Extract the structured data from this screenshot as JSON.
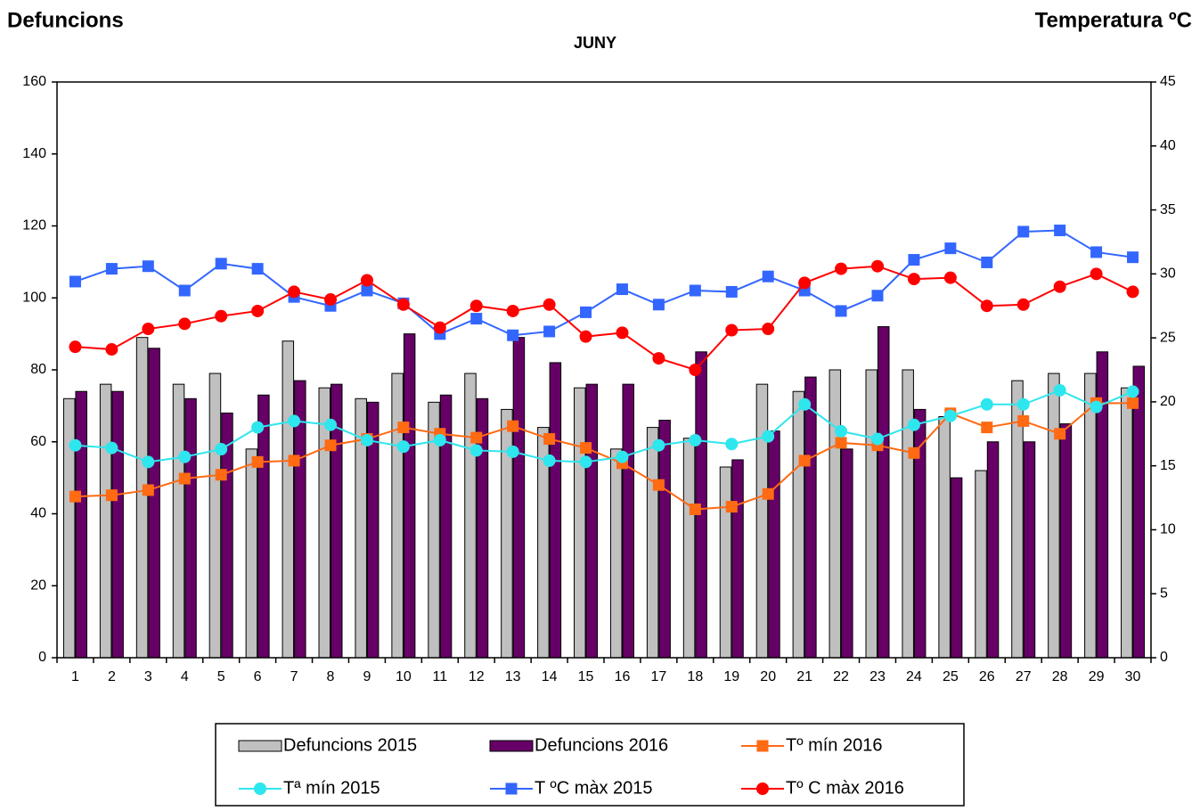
{
  "chart_data": {
    "type": "combo",
    "title": "JUNY",
    "y_label": "Defuncions",
    "y2_label": "Temperatura ºC",
    "categories": [
      "1",
      "2",
      "3",
      "4",
      "5",
      "6",
      "7",
      "8",
      "9",
      "10",
      "11",
      "12",
      "13",
      "14",
      "15",
      "16",
      "17",
      "18",
      "19",
      "20",
      "21",
      "22",
      "23",
      "24",
      "25",
      "26",
      "27",
      "28",
      "29",
      "30"
    ],
    "ylim": [
      0,
      160
    ],
    "yticks": [
      0,
      20,
      40,
      60,
      80,
      100,
      120,
      140,
      160
    ],
    "y2lim": [
      0,
      45
    ],
    "y2ticks": [
      0,
      5,
      10,
      15,
      20,
      25,
      30,
      35,
      40,
      45
    ],
    "series": [
      {
        "name": "Defuncions 2015",
        "type": "bar",
        "color": "#c0c0c0",
        "values": [
          72,
          76,
          89,
          76,
          79,
          58,
          88,
          75,
          72,
          79,
          71,
          79,
          69,
          64,
          75,
          58,
          64,
          61,
          53,
          76,
          74,
          80,
          80,
          80,
          67,
          52,
          77,
          79,
          79,
          75
        ]
      },
      {
        "name": "Defuncions 2016",
        "type": "bar",
        "color": "#660066",
        "values": [
          74,
          74,
          86,
          72,
          68,
          73,
          77,
          76,
          71,
          90,
          73,
          72,
          89,
          82,
          76,
          76,
          66,
          85,
          55,
          63,
          78,
          58,
          92,
          69,
          50,
          60,
          60,
          65,
          85,
          81
        ]
      },
      {
        "name": "Tº mín 2016",
        "type": "line",
        "axis": "y2",
        "marker": "square",
        "color": "#ff6a13",
        "values": [
          12.6,
          12.7,
          13.1,
          14.0,
          14.3,
          15.3,
          15.4,
          16.6,
          17.1,
          18.0,
          17.5,
          17.2,
          18.1,
          17.1,
          16.4,
          15.2,
          13.5,
          11.6,
          11.8,
          12.8,
          15.4,
          16.8,
          16.6,
          16.0,
          19.1,
          18.0,
          18.5,
          17.5,
          19.9,
          19.9
        ]
      },
      {
        "name": "Tª mín 2015",
        "type": "line",
        "axis": "y2",
        "marker": "circle",
        "color": "#2ee6ee",
        "values": [
          16.6,
          16.4,
          15.3,
          15.7,
          16.3,
          18.0,
          18.5,
          18.2,
          17.0,
          16.5,
          17.0,
          16.2,
          16.1,
          15.4,
          15.3,
          15.7,
          16.6,
          17.0,
          16.7,
          17.3,
          19.8,
          17.7,
          17.1,
          18.2,
          18.9,
          19.8,
          19.8,
          20.9,
          19.6,
          20.8
        ]
      },
      {
        "name": "T ºC màx 2015",
        "type": "line",
        "axis": "y2",
        "marker": "square",
        "color": "#3366ff",
        "values": [
          29.4,
          30.4,
          30.6,
          28.7,
          30.8,
          30.4,
          28.2,
          27.5,
          28.7,
          27.7,
          25.3,
          26.5,
          25.2,
          25.5,
          27.0,
          28.8,
          27.6,
          28.7,
          28.6,
          29.8,
          28.7,
          27.1,
          28.3,
          31.1,
          32.0,
          30.9,
          33.3,
          33.4,
          31.7,
          31.3
        ]
      },
      {
        "name": "Tº C màx 2016",
        "type": "line",
        "axis": "y2",
        "marker": "circle",
        "color": "#ff0000",
        "values": [
          24.3,
          24.1,
          25.7,
          26.1,
          26.7,
          27.1,
          28.6,
          28.0,
          29.5,
          27.6,
          25.8,
          27.5,
          27.1,
          27.6,
          25.1,
          25.4,
          23.4,
          22.5,
          25.6,
          25.7,
          29.3,
          30.4,
          30.6,
          29.6,
          29.7,
          27.5,
          27.6,
          29.0,
          30.0,
          28.6
        ]
      }
    ]
  }
}
